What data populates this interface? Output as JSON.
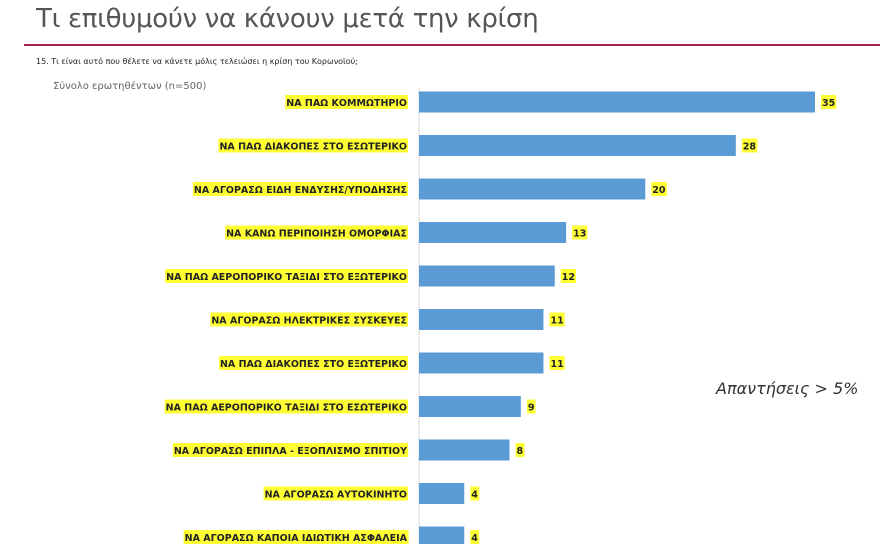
{
  "header": {
    "title": "Τι επιθυμούν να κάνουν μετά την κρίση"
  },
  "question": "15. Τι είναι αυτό που θέλετε να κάνετε μόλις  τελειώσει η κρίση του Κορωνοϊού;",
  "base": "Σύνολο ερωτηθέντων (n=500)",
  "note": "Απαντήσεις > 5%",
  "chart_data": {
    "type": "bar",
    "orientation": "horizontal",
    "categories": [
      "ΝΑ ΠΑΩ ΚΟΜΜΩΤΗΡΙΟ",
      "ΝΑ ΠΑΩ ΔΙΑΚΟΠΕΣ ΣΤΟ ΕΣΩΤΕΡΙΚΟ",
      "ΝΑ ΑΓΟΡΑΣΩ ΕΙΔΗ ΕΝΔΥΣΗΣ/ΥΠΟΔΗΣΗΣ",
      "ΝΑ ΚΑΝΩ ΠΕΡΙΠΟΙΗΣΗ ΟΜΟΡΦΙΑΣ",
      "ΝΑ ΠΑΩ ΑΕΡΟΠΟΡΙΚΟ ΤΑΞΙΔΙ ΣΤΟ ΕΞΩΤΕΡΙΚΟ",
      "ΝΑ ΑΓΟΡΑΣΩ ΗΛΕΚΤΡΙΚΕΣ ΣΥΣΚΕΥΕΣ",
      "ΝΑ ΠΑΩ ΔΙΑΚΟΠΕΣ ΣΤΟ ΕΞΩΤΕΡΙΚΟ",
      "ΝΑ ΠΑΩ ΑΕΡΟΠΟΡΙΚΟ ΤΑΞΙΔΙ ΣΤΟ ΕΣΩΤΕΡΙΚΟ",
      "ΝΑ ΑΓΟΡΑΣΩ ΕΠΙΠΛΑ - ΕΞΟΠΛΙΣΜΟ ΣΠΙΤΙΟΥ",
      "ΝΑ ΑΓΟΡΑΣΩ ΑΥΤΟΚΙΝΗΤΟ",
      "ΝΑ ΑΓΟΡΑΣΩ ΚΑΠΟΙΑ ΙΔΙΩΤΙΚΗ ΑΣΦΑΛΕΙΑ"
    ],
    "values": [
      35,
      28,
      20,
      13,
      12,
      11,
      11,
      9,
      8,
      4,
      4
    ],
    "xlim": [
      0,
      35
    ],
    "grid": false,
    "bar_color": "#5b9bd5",
    "highlight_color": "#ffff33"
  }
}
